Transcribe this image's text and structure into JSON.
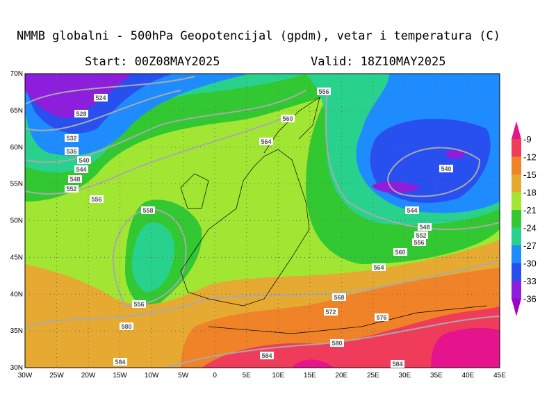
{
  "header": {
    "title": "NMMB globalni - 500hPa Geopotencijal (gpdm), vetar i temperatura (C)",
    "start": "Start: 00Z08MAY2025",
    "valid": "Valid: 18Z10MAY2025"
  },
  "map": {
    "lat_labels": [
      "70N",
      "65N",
      "60N",
      "55N",
      "50N",
      "45N",
      "40N",
      "35N",
      "30N"
    ],
    "lon_labels": [
      "30W",
      "25W",
      "20W",
      "15W",
      "10W",
      "5W",
      "0",
      "5E",
      "10E",
      "15E",
      "20E",
      "25E",
      "30E",
      "35E",
      "40E",
      "45E"
    ],
    "contour_labels": [
      "524",
      "528",
      "532",
      "536",
      "540",
      "544",
      "548",
      "552",
      "556",
      "556",
      "560",
      "564",
      "558",
      "556",
      "580",
      "584",
      "540",
      "544",
      "548",
      "552",
      "556",
      "560",
      "564",
      "568",
      "572",
      "576",
      "580",
      "584",
      "584"
    ]
  },
  "colorbar": {
    "levels": [
      -9,
      -12,
      -15,
      -18,
      -21,
      -24,
      -27,
      -30,
      -33,
      -36
    ],
    "colors": [
      "#e6148c",
      "#f03c5a",
      "#f08228",
      "#e6aa32",
      "#a0e632",
      "#32c832",
      "#28d28c",
      "#1e8cff",
      "#2850f0",
      "#8c1edc",
      "#a000c8"
    ]
  }
}
